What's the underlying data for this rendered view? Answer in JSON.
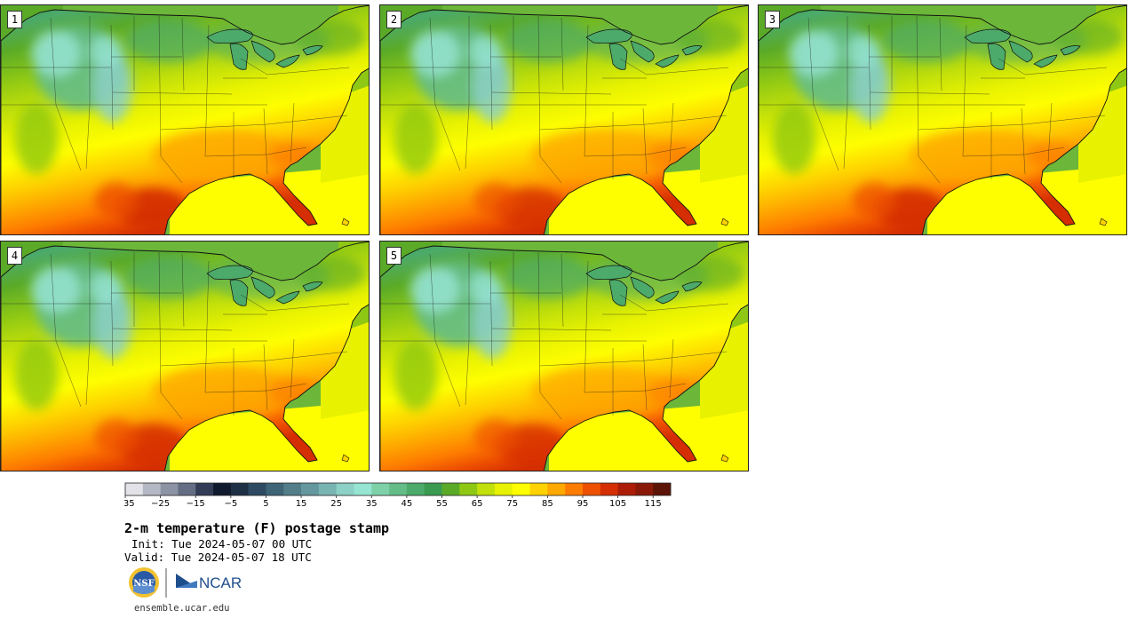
{
  "panels": [
    {
      "number": "1",
      "warmth": 1.0
    },
    {
      "number": "2",
      "warmth": 0.75
    },
    {
      "number": "3",
      "warmth": 0.9
    },
    {
      "number": "4",
      "warmth": 0.85
    },
    {
      "number": "5",
      "warmth": 0.7
    }
  ],
  "colorbar": {
    "colors": [
      "#e2e2e8",
      "#b4b8c4",
      "#8c93a4",
      "#646d84",
      "#323c56",
      "#101a2e",
      "#1e3046",
      "#2e4a62",
      "#3e6476",
      "#527e8a",
      "#64989e",
      "#78b4b2",
      "#8cd0c6",
      "#96e4d2",
      "#7ed0a8",
      "#64bc86",
      "#4caa6a",
      "#3a9a50",
      "#5aaa28",
      "#8ec814",
      "#c2e00a",
      "#e8f200",
      "#fefe00",
      "#fed200",
      "#fea800",
      "#fe7c00",
      "#ee5000",
      "#d42e02",
      "#ac1c06",
      "#8a1808",
      "#5c1406"
    ],
    "ticks": [
      "−35",
      "−25",
      "−15",
      "−5",
      "5",
      "15",
      "25",
      "35",
      "45",
      "55",
      "65",
      "75",
      "85",
      "95",
      "105",
      "115"
    ]
  },
  "title": "2-m temperature (F) postage stamp",
  "init": "Init: Tue 2024-05-07 00 UTC",
  "valid": "Valid: Tue 2024-05-07 18 UTC",
  "logos": {
    "nsf": "NSF",
    "ncar": "NCAR"
  },
  "url": "ensemble.ucar.edu"
}
